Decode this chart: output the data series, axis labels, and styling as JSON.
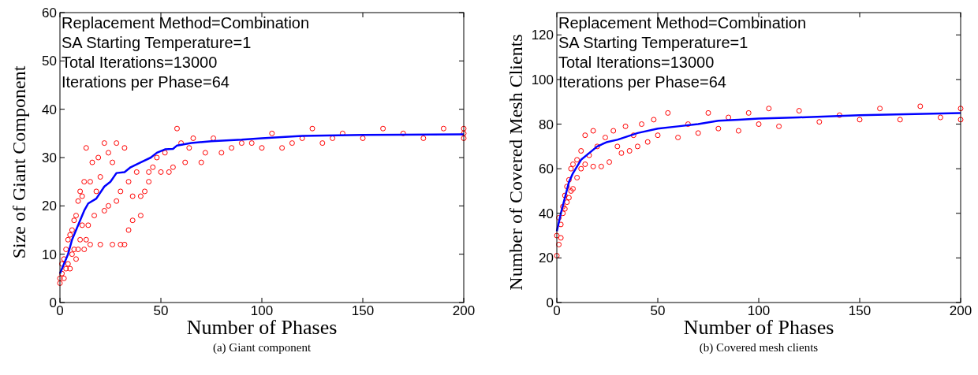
{
  "chart_data": [
    {
      "type": "scatter",
      "xlabel": "Number of Phases",
      "ylabel": "Size of Giant Component",
      "xlim": [
        0,
        200
      ],
      "ylim": [
        0,
        60
      ],
      "xticks": [
        0,
        50,
        100,
        150,
        200
      ],
      "yticks": [
        0,
        10,
        20,
        30,
        40,
        50,
        60
      ],
      "grid": false,
      "annotations": [
        "Replacement Method=Combination",
        "SA Starting Temperature=1",
        "Total Iterations=13000",
        "Iterations per Phase=64",
        "(a) Giant component"
      ],
      "series": [
        {
          "type": "scatter",
          "marker": "circle",
          "color": "#ff0000",
          "x": [
            0,
            0,
            1,
            1,
            2,
            2,
            3,
            3,
            4,
            4,
            5,
            5,
            6,
            6,
            7,
            7,
            8,
            8,
            9,
            9,
            10,
            10,
            11,
            11,
            12,
            12,
            13,
            13,
            14,
            15,
            15,
            16,
            17,
            18,
            19,
            20,
            20,
            22,
            22,
            24,
            24,
            26,
            26,
            28,
            28,
            30,
            30,
            32,
            32,
            34,
            34,
            36,
            36,
            38,
            40,
            40,
            42,
            44,
            44,
            46,
            48,
            50,
            52,
            54,
            56,
            58,
            60,
            62,
            64,
            66,
            70,
            72,
            76,
            80,
            85,
            90,
            95,
            100,
            105,
            110,
            115,
            120,
            125,
            130,
            135,
            140,
            150,
            160,
            170,
            180,
            190,
            200,
            200,
            200
          ],
          "values": [
            4,
            5,
            6,
            8,
            5,
            9,
            7,
            11,
            8,
            13,
            7,
            14,
            10,
            15,
            11,
            17,
            9,
            18,
            11,
            21,
            13,
            23,
            16,
            22,
            11,
            25,
            13,
            32,
            16,
            12,
            25,
            29,
            18,
            23,
            30,
            12,
            26,
            19,
            33,
            20,
            31,
            12,
            29,
            21,
            33,
            12,
            23,
            12,
            32,
            25,
            15,
            22,
            17,
            27,
            18,
            22,
            23,
            25,
            27,
            28,
            30,
            27,
            31,
            27,
            28,
            36,
            33,
            29,
            32,
            34,
            29,
            31,
            34,
            31,
            32,
            33,
            33,
            32,
            35,
            32,
            33,
            34,
            36,
            33,
            34,
            35,
            34,
            36,
            35,
            34,
            36,
            35,
            34,
            36
          ]
        },
        {
          "type": "line",
          "marker": "none",
          "color": "#0000ff",
          "x": [
            0,
            2,
            4,
            6,
            8,
            10,
            12,
            14,
            18,
            22,
            25,
            28,
            32,
            35,
            40,
            45,
            48,
            52,
            56,
            58,
            65,
            75,
            90,
            100,
            120,
            150,
            200
          ],
          "values": [
            6,
            8,
            10,
            13,
            15,
            17,
            19,
            20.5,
            21.5,
            24,
            25,
            26.8,
            27,
            28,
            29,
            30,
            31,
            31.7,
            31.8,
            32.5,
            33,
            33.4,
            33.7,
            34,
            34.5,
            34.7,
            34.8
          ]
        }
      ]
    },
    {
      "type": "scatter",
      "xlabel": "Number of Phases",
      "ylabel": "Number of Covered Mesh Clients",
      "xlim": [
        0,
        200
      ],
      "ylim": [
        0,
        130
      ],
      "xticks": [
        0,
        50,
        100,
        150,
        200
      ],
      "yticks": [
        0,
        20,
        40,
        60,
        80,
        100,
        120
      ],
      "grid": false,
      "annotations": [
        "Replacement Method=Combination",
        "SA Starting Temperature=1",
        "Total Iterations=13000",
        "Iterations per Phase=64",
        "(b) Covered mesh clients"
      ],
      "series": [
        {
          "type": "scatter",
          "marker": "circle",
          "color": "#ff0000",
          "x": [
            0,
            0,
            1,
            1,
            2,
            2,
            3,
            3,
            4,
            4,
            5,
            5,
            6,
            6,
            7,
            7,
            8,
            8,
            10,
            10,
            12,
            12,
            14,
            14,
            16,
            18,
            18,
            20,
            22,
            24,
            26,
            28,
            30,
            32,
            34,
            36,
            38,
            40,
            42,
            45,
            48,
            50,
            55,
            60,
            65,
            70,
            75,
            80,
            85,
            90,
            95,
            100,
            105,
            110,
            120,
            130,
            140,
            150,
            160,
            170,
            180,
            190,
            200,
            200
          ],
          "values": [
            21,
            30,
            26,
            38,
            29,
            35,
            40,
            43,
            42,
            48,
            45,
            52,
            47,
            55,
            50,
            60,
            51,
            62,
            56,
            64,
            60,
            68,
            62,
            75,
            66,
            61,
            77,
            70,
            61,
            74,
            63,
            77,
            70,
            67,
            79,
            68,
            75,
            70,
            80,
            72,
            82,
            75,
            85,
            74,
            80,
            76,
            85,
            78,
            83,
            77,
            85,
            80,
            87,
            79,
            86,
            81,
            84,
            82,
            87,
            82,
            88,
            83,
            87,
            82
          ]
        },
        {
          "type": "line",
          "marker": "none",
          "color": "#0000ff",
          "x": [
            0,
            2,
            4,
            6,
            8,
            12,
            16,
            20,
            25,
            30,
            35,
            40,
            50,
            60,
            70,
            80,
            90,
            100,
            120,
            150,
            200
          ],
          "values": [
            32,
            40,
            47,
            54,
            58,
            64,
            67,
            70,
            72,
            73,
            74.5,
            76,
            78,
            79,
            80,
            81.5,
            82,
            82.5,
            83,
            84,
            85
          ]
        }
      ]
    }
  ]
}
